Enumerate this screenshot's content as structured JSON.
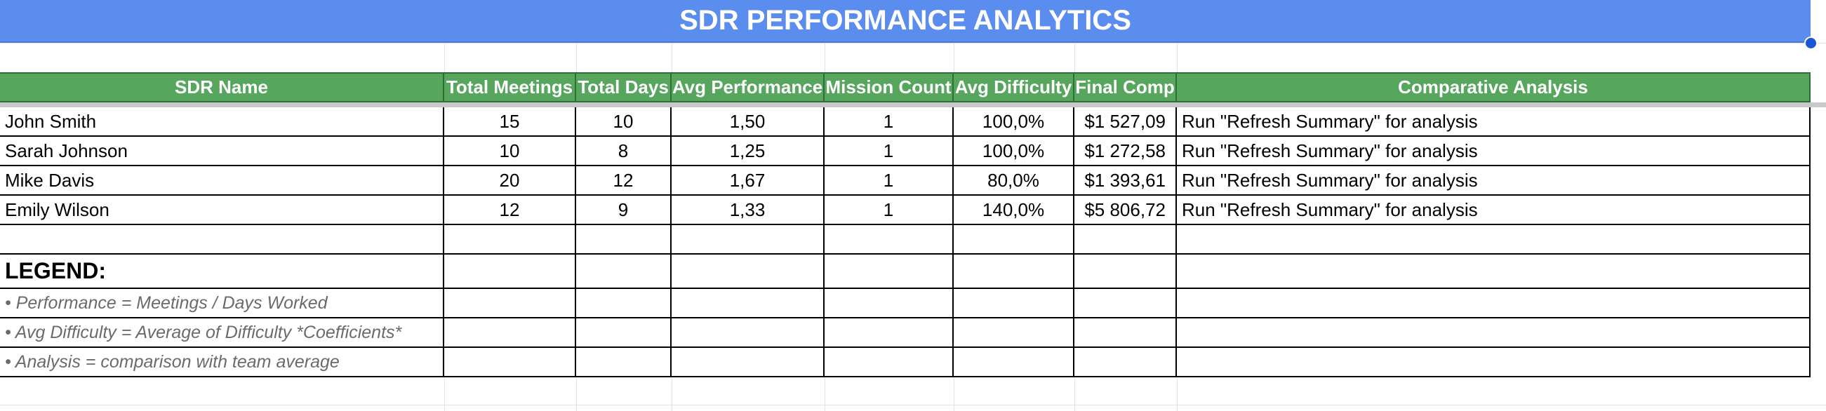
{
  "title": "SDR PERFORMANCE ANALYTICS",
  "columns": [
    "SDR Name",
    "Total Meetings",
    "Total Days",
    "Avg Performance",
    "Mission Count",
    "Avg Difficulty",
    "Final Comp",
    "Comparative Analysis"
  ],
  "rows": [
    [
      "John Smith",
      "15",
      "10",
      "1,50",
      "1",
      "100,0%",
      "$1 527,09",
      "Run \"Refresh Summary\" for analysis"
    ],
    [
      "Sarah Johnson",
      "10",
      "8",
      "1,25",
      "1",
      "100,0%",
      "$1 272,58",
      "Run \"Refresh Summary\" for analysis"
    ],
    [
      "Mike Davis",
      "20",
      "12",
      "1,67",
      "1",
      "80,0%",
      "$1 393,61",
      "Run \"Refresh Summary\" for analysis"
    ],
    [
      "Emily Wilson",
      "12",
      "9",
      "1,33",
      "1",
      "140,0%",
      "$5 806,72",
      "Run \"Refresh Summary\" for analysis"
    ]
  ],
  "legend": {
    "title": "LEGEND:",
    "items": [
      "• Performance = Meetings / Days Worked",
      "• Avg Difficulty = Average of Difficulty *Coefficients*",
      "• Analysis = comparison with team average"
    ]
  },
  "colors": {
    "title_bg": "#5b8def",
    "header_bg": "#57a65e",
    "selection_handle": "#1a56d6",
    "legend_text": "#6b6b6b"
  }
}
